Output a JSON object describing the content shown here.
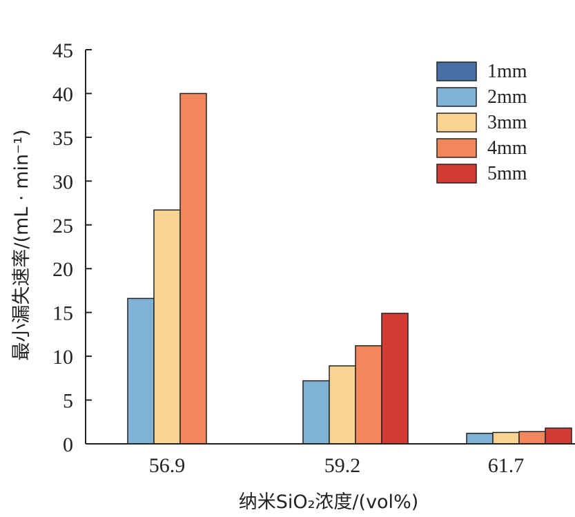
{
  "chart_data": {
    "type": "bar",
    "xlabel": "纳米SiO₂浓度/(vol%)",
    "ylabel": "最小漏失速率/(mL · min⁻¹)",
    "categories": [
      "56.9",
      "59.2",
      "61.7"
    ],
    "ylim": [
      0,
      45
    ],
    "yticks": [
      0,
      5,
      10,
      15,
      20,
      25,
      30,
      35,
      40,
      45
    ],
    "legend_position": "top-right",
    "grid": false,
    "series": [
      {
        "name": "1mm",
        "color": "#4a6fa5",
        "values": [
          0,
          0,
          0
        ]
      },
      {
        "name": "2mm",
        "color": "#7fb2d4",
        "values": [
          16.6,
          7.2,
          1.2
        ]
      },
      {
        "name": "3mm",
        "color": "#f8d391",
        "values": [
          26.7,
          8.9,
          1.3
        ]
      },
      {
        "name": "4mm",
        "color": "#f2875c",
        "values": [
          40.0,
          11.2,
          1.4
        ]
      },
      {
        "name": "5mm",
        "color": "#d13b33",
        "values": [
          0,
          14.9,
          1.8
        ]
      }
    ]
  }
}
